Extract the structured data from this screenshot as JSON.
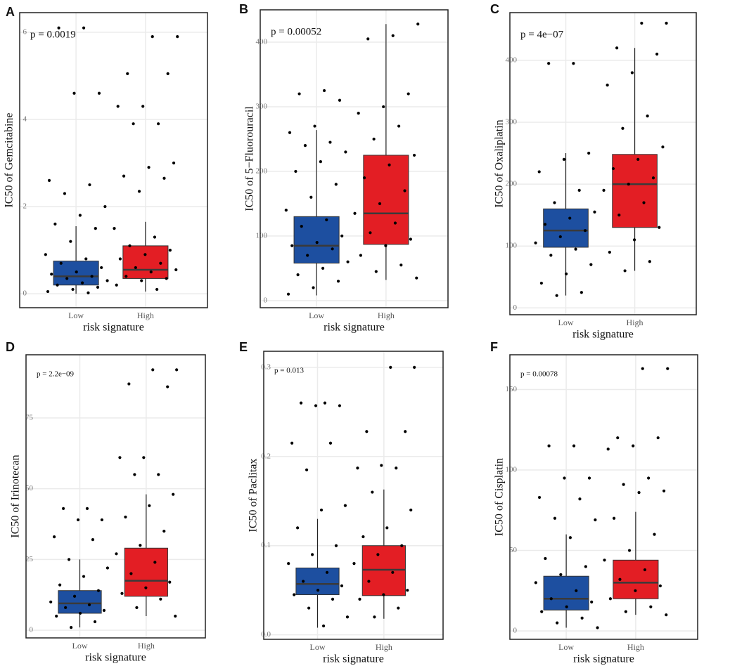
{
  "chart_data": [
    {
      "type": "box",
      "panel_label": "A",
      "annotation": "p = 0.0019",
      "ylabel": "IC50 of Gemcitabine",
      "xlabel": "risk signature",
      "categories": [
        "Low",
        "High"
      ],
      "ylim": [
        -0.32,
        6.45
      ],
      "yticks": [
        0,
        2,
        4,
        6
      ],
      "grid": true,
      "boxes": [
        {
          "color": "#1d4fa0",
          "whisker_low": 0,
          "q1": 0.2,
          "median": 0.4,
          "q3": 0.75,
          "whisker_high": 1.55,
          "points": [
            6.1,
            6.1,
            4.6,
            4.6,
            2.6,
            2.5,
            2.3,
            2.0,
            1.8,
            1.6,
            1.5,
            1.2,
            0.9,
            0.8,
            0.7,
            0.6,
            0.5,
            0.45,
            0.4,
            0.35,
            0.3,
            0.25,
            0.2,
            0.15,
            0.1,
            0.05,
            0.02
          ]
        },
        {
          "color": "#e31e24",
          "whisker_low": 0.05,
          "q1": 0.35,
          "median": 0.55,
          "q3": 1.1,
          "whisker_high": 1.65,
          "points": [
            5.9,
            5.9,
            5.05,
            5.05,
            4.3,
            4.3,
            3.9,
            3.9,
            3.0,
            2.9,
            2.7,
            2.65,
            2.35,
            1.5,
            1.3,
            1.1,
            1.0,
            0.9,
            0.8,
            0.7,
            0.6,
            0.55,
            0.5,
            0.4,
            0.35,
            0.3,
            0.2,
            0.1
          ]
        }
      ]
    },
    {
      "type": "box",
      "panel_label": "B",
      "annotation": "p = 0.00052",
      "ylabel": "IC50 of 5−Fluorouracil",
      "xlabel": "risk signature",
      "categories": [
        "Low",
        "High"
      ],
      "ylim": [
        -11,
        450
      ],
      "yticks": [
        0,
        100,
        200,
        300,
        400
      ],
      "grid": true,
      "boxes": [
        {
          "color": "#1d4fa0",
          "whisker_low": 8,
          "q1": 58,
          "median": 85,
          "q3": 130,
          "whisker_high": 264,
          "points": [
            325,
            320,
            310,
            270,
            260,
            245,
            240,
            230,
            215,
            200,
            180,
            160,
            140,
            125,
            115,
            100,
            90,
            85,
            80,
            70,
            60,
            50,
            40,
            30,
            20,
            10
          ]
        },
        {
          "color": "#e31e24",
          "whisker_low": 32,
          "q1": 87,
          "median": 135,
          "q3": 225,
          "whisker_high": 428,
          "points": [
            428,
            410,
            405,
            320,
            300,
            290,
            270,
            250,
            225,
            210,
            190,
            170,
            150,
            135,
            120,
            105,
            95,
            85,
            70,
            55,
            45,
            35
          ]
        }
      ]
    },
    {
      "type": "box",
      "panel_label": "C",
      "annotation": "p = 4e−07",
      "ylabel": "IC50 of Oxaliplatin",
      "xlabel": "risk signature",
      "categories": [
        "Low",
        "High"
      ],
      "ylim": [
        -11,
        477
      ],
      "yticks": [
        0,
        100,
        200,
        300,
        400
      ],
      "grid": true,
      "boxes": [
        {
          "color": "#1d4fa0",
          "whisker_low": 20,
          "q1": 98,
          "median": 125,
          "q3": 160,
          "whisker_high": 250,
          "points": [
            395,
            395,
            250,
            240,
            220,
            190,
            170,
            155,
            145,
            135,
            125,
            115,
            105,
            95,
            85,
            70,
            55,
            40,
            25,
            20
          ]
        },
        {
          "color": "#e31e24",
          "whisker_low": 60,
          "q1": 130,
          "median": 200,
          "q3": 248,
          "whisker_high": 420,
          "points": [
            460,
            460,
            420,
            410,
            380,
            360,
            310,
            290,
            260,
            240,
            225,
            210,
            200,
            190,
            170,
            150,
            130,
            110,
            90,
            75,
            60
          ]
        }
      ]
    },
    {
      "type": "box",
      "panel_label": "D",
      "annotation": "p = 2.2e−09",
      "ylabel": "IC50 of Irinotecan",
      "xlabel": "risk signature",
      "categories": [
        "Low",
        "High"
      ],
      "ylim": [
        -2.7,
        97.3
      ],
      "yticks": [
        0,
        25,
        50,
        75
      ],
      "grid": true,
      "boxes": [
        {
          "color": "#1d4fa0",
          "whisker_low": 1,
          "q1": 6,
          "median": 9.5,
          "q3": 14,
          "whisker_high": 25,
          "points": [
            43,
            43,
            39,
            39,
            33,
            32,
            25,
            22,
            19,
            16,
            14,
            12,
            10,
            9,
            8,
            7,
            6,
            5,
            3,
            1
          ]
        },
        {
          "color": "#e31e24",
          "whisker_low": 5,
          "q1": 12,
          "median": 17.5,
          "q3": 29,
          "whisker_high": 48,
          "points": [
            92,
            92,
            87,
            86,
            61,
            61,
            55,
            55,
            48,
            44,
            40,
            35,
            30,
            27,
            24,
            20,
            17,
            15,
            13,
            11,
            8,
            5
          ]
        }
      ]
    },
    {
      "type": "box",
      "panel_label": "E",
      "annotation": "p = 0.013",
      "ylabel": "IC50 of Paclitax",
      "xlabel": "risk signature",
      "categories": [
        "Low",
        "High"
      ],
      "ylim": [
        -0.005,
        0.318
      ],
      "yticks": [
        {
          "value": 0,
          "label": "0.0"
        },
        0.1,
        0.2,
        0.3
      ],
      "grid": true,
      "boxes": [
        {
          "color": "#1d4fa0",
          "whisker_low": 0.008,
          "q1": 0.045,
          "median": 0.057,
          "q3": 0.075,
          "whisker_high": 0.13,
          "points": [
            0.26,
            0.26,
            0.257,
            0.257,
            0.215,
            0.215,
            0.185,
            0.145,
            0.14,
            0.12,
            0.1,
            0.09,
            0.08,
            0.07,
            0.06,
            0.055,
            0.05,
            0.045,
            0.04,
            0.03,
            0.02,
            0.01
          ]
        },
        {
          "color": "#e31e24",
          "whisker_low": 0.018,
          "q1": 0.044,
          "median": 0.073,
          "q3": 0.1,
          "whisker_high": 0.163,
          "points": [
            0.3,
            0.3,
            0.228,
            0.228,
            0.19,
            0.187,
            0.187,
            0.16,
            0.14,
            0.12,
            0.11,
            0.1,
            0.09,
            0.08,
            0.07,
            0.06,
            0.05,
            0.045,
            0.04,
            0.03,
            0.02
          ]
        }
      ]
    },
    {
      "type": "box",
      "panel_label": "F",
      "annotation": "p = 0.00078",
      "ylabel": "IC50 of Cisplatin",
      "xlabel": "risk signature",
      "categories": [
        "Low",
        "High"
      ],
      "ylim": [
        -5.2,
        171.6
      ],
      "yticks": [
        0,
        50,
        100,
        150
      ],
      "grid": true,
      "boxes": [
        {
          "color": "#1d4fa0",
          "whisker_low": 2,
          "q1": 13,
          "median": 20,
          "q3": 34,
          "whisker_high": 60,
          "points": [
            115,
            115,
            95,
            95,
            83,
            82,
            70,
            69,
            58,
            45,
            40,
            35,
            30,
            25,
            20,
            18,
            15,
            12,
            8,
            5,
            2
          ]
        },
        {
          "color": "#e31e24",
          "whisker_low": 10,
          "q1": 20,
          "median": 30,
          "q3": 44,
          "whisker_high": 74,
          "points": [
            163,
            163,
            120,
            120,
            115,
            113,
            95,
            91,
            87,
            86,
            70,
            60,
            50,
            44,
            38,
            32,
            28,
            25,
            20,
            15,
            12,
            10
          ]
        }
      ]
    }
  ]
}
